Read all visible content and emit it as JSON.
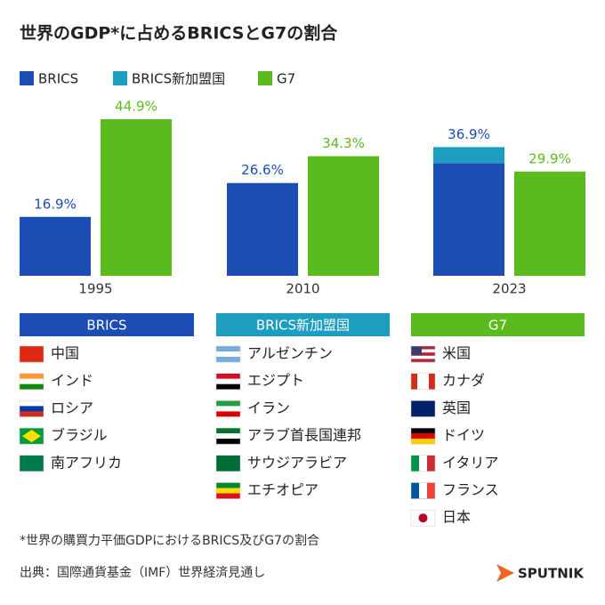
{
  "chart_data": {
    "type": "bar",
    "title": "世界のGDP*に占めるBRICSとG7の割合",
    "categories": [
      "1995",
      "2010",
      "2023"
    ],
    "series": [
      {
        "name": "BRICS",
        "color": "#1b4db5",
        "values": [
          16.9,
          26.6,
          32.3
        ],
        "value_labels": [
          "16.9%",
          "26.6%",
          null
        ],
        "stack": "a"
      },
      {
        "name": "BRICS新加盟国",
        "color": "#1d9dbf",
        "values": [
          null,
          null,
          4.6
        ],
        "stack": "a"
      },
      {
        "name": "G7",
        "color": "#5bbb1e",
        "values": [
          44.9,
          34.3,
          29.9
        ],
        "value_labels": [
          "44.9%",
          "34.3%",
          "29.9%"
        ],
        "stack": "b"
      }
    ],
    "totals": [
      null,
      null,
      36.9
    ],
    "total_labels": [
      null,
      null,
      "36.9%"
    ],
    "ylim": [
      0,
      50
    ]
  },
  "groups": [
    {
      "title": "BRICS",
      "members": [
        "中国",
        "インド",
        "ロシア",
        "ブラジル",
        "南アフリカ"
      ]
    },
    {
      "title": "BRICS新加盟国",
      "members": [
        "アルゼンチン",
        "エジプト",
        "イラン",
        "アラブ首長国連邦",
        "サウジアラビア",
        "エチオピア"
      ]
    },
    {
      "title": "G7",
      "members": [
        "米国",
        "カナダ",
        "英国",
        "ドイツ",
        "イタリア",
        "フランス",
        "日本"
      ]
    }
  ],
  "footnote": "*世界の購買力平価GDPにおけるBRICS及びG7の割合",
  "source": "出典：国際通貨基金（IMF）世界経済見通し",
  "logo": "SPUTNIK"
}
